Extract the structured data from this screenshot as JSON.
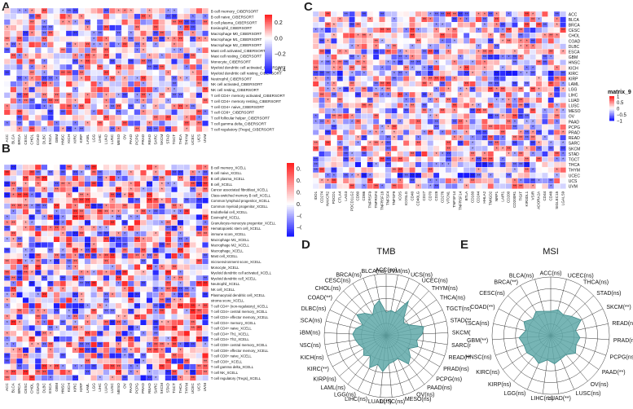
{
  "panels": {
    "a": "A",
    "b": "B",
    "c": "C",
    "d": "D",
    "e": "E"
  },
  "chart_data": [
    {
      "type": "heatmap",
      "panel": "A",
      "rows": [
        "B cell memory_CIBERSORT",
        "B cell naive_CIBERSORT",
        "B cell plasma_CIBERSORT",
        "Eosinophil_CIBERSORT",
        "Macrophage M0_CIBERSORT",
        "Macrophage M1_CIBERSORT",
        "Macrophage M2_CIBERSORT",
        "Mast cell activated_CIBERSORT",
        "Mast cell resting_CIBERSORT",
        "Monocyte_CIBERSORT",
        "Myeloid dendritic cell activated_CIBERSORT",
        "Myeloid dendritic cell resting_CIBERSORT",
        "Neutrophil_CIBERSORT",
        "NK cell activated_CIBERSORT",
        "NK cell resting_CIBERSORT",
        "T cell CD4+ memory activated_CIBERSORT",
        "T cell CD4+ memory resting_CIBERSORT",
        "T cell CD4+ naive_CIBERSORT",
        "T cell CD8+_CIBERSORT",
        "T cell follicular helper_CIBERSORT",
        "T cell gamma delta_CIBERSORT",
        "T cell regulatory (Tregs)_CIBERSORT"
      ],
      "columns": [
        "ACC",
        "BLCA",
        "BRCA",
        "CESC",
        "CHOL",
        "COAD",
        "DLBC",
        "ESCA",
        "GBM",
        "HNSC",
        "KICH",
        "KIRC",
        "KIRP",
        "LAML",
        "LGG",
        "LIHC",
        "LUAD",
        "LUSC",
        "MESO",
        "OV",
        "PAAD",
        "PCPG",
        "PRAD",
        "READ",
        "SARC",
        "SKCM",
        "STAD",
        "TGCT",
        "THCA",
        "THYM",
        "UCEC",
        "UCS",
        "UVM"
      ],
      "colorbar": {
        "ticks": [
          "0.2",
          "0.0",
          "−0.2",
          "−0.4"
        ],
        "min": -0.45,
        "max": 0.3
      }
    },
    {
      "type": "heatmap",
      "panel": "B",
      "rows": [
        "B cell memory_XCELL",
        "B cell naive_XCELL",
        "B cell plasma_XCELL",
        "B cell_XCELL",
        "Cancer associated fibroblast_XCELL",
        "Class-switched memory B cell_XCELL",
        "Common lymphoid progenitor_XCELL",
        "Common myeloid progenitor_XCELL",
        "Endothelial cell_XCELL",
        "Eosinophil_XCELL",
        "Granulocyte-monocyte progenitor_XCELL",
        "Hematopoietic stem cell_XCELL",
        "immune score_XCELL",
        "Macrophage M1_XCELL",
        "Macrophage M2_XCELL",
        "Macrophage_XCELL",
        "Mast cell_XCELL",
        "microenvironment score_XCELL",
        "Monocyte_XCELL",
        "Myeloid dendritic cell activated_XCELL",
        "Myeloid dendritic cell_XCELL",
        "Neutrophil_XCELL",
        "NK cell_XCELL",
        "Plasmacytoid dendritic cell_XCELL",
        "stroma score_XCELL",
        "T cell CD4+ (non-regulatory)_XCELL",
        "T cell CD4+ central memory_XCELL",
        "T cell CD4+ effector memory_XCELL",
        "T cell CD4+ memory_XCELL",
        "T cell CD4+ naive_XCELL",
        "T cell CD4+ Th1_XCELL",
        "T cell CD4+ Th2_XCELL",
        "T cell CD8+ central memory_XCELL",
        "T cell CD8+ effector memory_XCELL",
        "T cell CD8+ naive_XCELL",
        "T cell CD8+_XCELL",
        "T cell gamma delta_XCELL",
        "T cell NK_XCELL",
        "T cell regulatory (Tregs)_XCELL"
      ],
      "columns": [
        "ACC",
        "BLCA",
        "BRCA",
        "CESC",
        "CHOL",
        "COAD",
        "DLBC",
        "ESCA",
        "GBM",
        "HNSC",
        "KICH",
        "KIRC",
        "KIRP",
        "LAML",
        "LGG",
        "LIHC",
        "LUAD",
        "LUSC",
        "MESO",
        "OV",
        "PAAD",
        "PCPG",
        "PRAD",
        "READ",
        "SARC",
        "SKCM",
        "STAD",
        "TGCT",
        "THCA",
        "THYM",
        "UCEC",
        "UCS",
        "UVM"
      ],
      "colorbar": {
        "ticks": [
          "0.6",
          "0.4",
          "0.2",
          "0.0",
          "−0.2",
          "−0.4"
        ],
        "min": -0.55,
        "max": 0.7
      }
    },
    {
      "type": "heatmap",
      "panel": "C",
      "rows": [
        "ACC",
        "BLCA",
        "BRCA",
        "CESC",
        "CHOL",
        "COAD",
        "DLBC",
        "ESCA",
        "GBM",
        "HNSC",
        "KICH",
        "KIRC",
        "KIRP",
        "LAML",
        "LGG",
        "LIHC",
        "LUAD",
        "LUSC",
        "MESO",
        "OV",
        "PAAD",
        "PCPG",
        "PRAD",
        "READ",
        "SARC",
        "SKCM",
        "STAD",
        "TGCT",
        "THCA",
        "THYM",
        "UCEC",
        "UCS",
        "UVM"
      ],
      "columns": [
        "IDO1",
        "CD274",
        "HAVCR2",
        "PDCD1",
        "CTLA4",
        "LAG3",
        "PDCD1LG2",
        "CD80",
        "CD86",
        "TNFRSF9",
        "TNFRSF4",
        "TNFRSF18",
        "TNFSF4",
        "TNFSF9",
        "ICOS",
        "ICOSLG",
        "CD40",
        "CD40LG",
        "CD27",
        "CD70",
        "CD28",
        "CD276",
        "VTCN1",
        "TNFSF14",
        "TNFRSF14",
        "BTLA",
        "CD160",
        "CD244",
        "HHLA2",
        "TMIGD2",
        "NRP1",
        "LAIR1",
        "CD200",
        "CD200R1",
        "TIGIT",
        "KIR3DL1",
        "VSIR",
        "ADORA2A",
        "CD44",
        "CD48",
        "SIGLEC15",
        "LGALS9"
      ],
      "legend": {
        "title": "matrix_9",
        "ticks": [
          "1",
          "0.5",
          "0",
          "−0.5",
          "−1"
        ]
      }
    },
    {
      "type": "radar",
      "panel": "D",
      "title": "TMB",
      "labels": [
        "ACC(ns)",
        "UVM(ns)",
        "UCS(ns)",
        "UCEC(ns)",
        "THYM(ns)",
        "THCA(ns)",
        "TGCT(ns)",
        "STAD(**)",
        "SKCM(**)",
        "SARC(ns)",
        "READ(**)",
        "PRAD(ns)",
        "PCPG(ns)",
        "PAAD(ns)",
        "OV(ns)",
        "MESO(ns)",
        "LUSC(ns)",
        "LUAD(**)",
        "LIHC(ns)",
        "LGG(ns)",
        "LAML(ns)",
        "KIRP(ns)",
        "KIRC(**)",
        "KICH(ns)",
        "HNSC(ns)",
        "GBM(ns)",
        "ESCA(ns)",
        "DLBC(ns)",
        "COAD(**)",
        "CHOL(ns)",
        "CESC(ns)",
        "BRCA(ns)",
        "BLCA(ns)"
      ],
      "values": [
        0.25,
        0.3,
        0.28,
        0.6,
        0.3,
        0.22,
        0.3,
        0.55,
        0.5,
        0.4,
        0.45,
        0.3,
        0.42,
        0.5,
        0.3,
        0.32,
        0.35,
        0.5,
        0.38,
        0.5,
        0.3,
        0.38,
        0.3,
        0.35,
        0.4,
        0.45,
        0.4,
        0.3,
        0.5,
        0.4,
        0.28,
        0.42,
        0.5
      ],
      "rlim": [
        -0.2,
        1
      ]
    },
    {
      "type": "radar",
      "panel": "E",
      "title": "MSI",
      "labels": [
        "ACC(ns)",
        "UCEC(ns)",
        "THCA(ns)",
        "STAD(ns)",
        "SKCM(**)",
        "READ(ns)",
        "PRAD(ns)",
        "PCPG(ns)",
        "PAAD(**)",
        "OV(ns)",
        "LUSC(ns)",
        "LUAD(**)",
        "LIHC(ns)",
        "LGG(ns)",
        "KIRP(ns)",
        "KIRC(ns)",
        "HNSC(ns)",
        "GBM(**)",
        "ESCA(ns)",
        "COAD(**)",
        "CESC(ns)",
        "BRCA(**)",
        "BLCA(ns)"
      ],
      "values": [
        0.3,
        0.35,
        0.3,
        0.38,
        0.5,
        0.32,
        0.4,
        0.35,
        0.42,
        0.3,
        0.32,
        0.38,
        0.3,
        0.42,
        0.35,
        0.4,
        0.38,
        0.45,
        0.32,
        0.42,
        0.3,
        0.38,
        0.32
      ],
      "rlim": [
        -0.2,
        1
      ]
    }
  ]
}
